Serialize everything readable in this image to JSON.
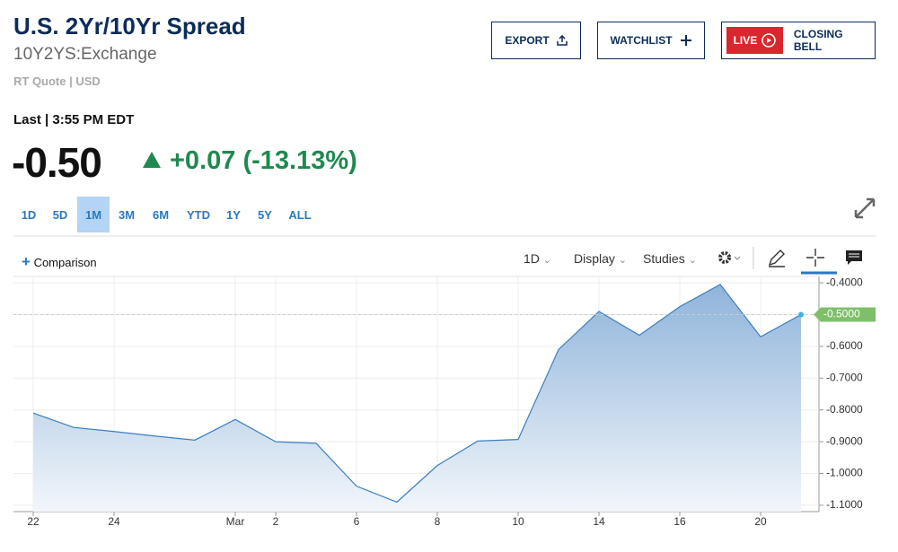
{
  "header": {
    "title": "U.S. 2Yr/10Yr Spread",
    "symbol": "10Y2YS:Exchange",
    "quote_note": "RT Quote | USD"
  },
  "buttons": {
    "export": "EXPORT",
    "watchlist": "WATCHLIST",
    "live": "LIVE",
    "closing_bell": "CLOSING BELL"
  },
  "quote": {
    "last": "Last | 3:55 PM EDT",
    "price": "-0.50",
    "change": "+0.07",
    "change_pct": "(-13.13%)"
  },
  "ranges": [
    "1D",
    "5D",
    "1M",
    "3M",
    "6M",
    "YTD",
    "1Y",
    "5Y",
    "ALL"
  ],
  "selected_range_index": 2,
  "toolbar": {
    "comparison": "Comparison",
    "interval": "1D",
    "display": "Display",
    "studies": "Studies"
  },
  "chart_data": {
    "type": "area",
    "categories": [
      "22",
      null,
      "24",
      null,
      null,
      "Mar",
      "2",
      null,
      "6",
      null,
      "8",
      null,
      "10",
      null,
      "14",
      null,
      "16",
      null,
      "20",
      null
    ],
    "values": [
      -0.81,
      -0.855,
      -0.868,
      -0.882,
      -0.895,
      -0.83,
      -0.9,
      -0.905,
      -1.04,
      -1.09,
      -0.975,
      -0.898,
      -0.893,
      -0.61,
      -0.49,
      -0.565,
      -0.475,
      -0.405,
      -0.57,
      -0.5
    ],
    "color": "#3a7fc1",
    "ylim": [
      -1.12,
      -0.38
    ],
    "yticks": [
      {
        "value": -0.4,
        "label": "-0.4000"
      },
      {
        "value": -0.5,
        "label": "-0.5000"
      },
      {
        "value": -0.6,
        "label": "-0.6000"
      },
      {
        "value": -0.7,
        "label": "-0.7000"
      },
      {
        "value": -0.8,
        "label": "-0.8000"
      },
      {
        "value": -0.9,
        "label": "-0.9000"
      },
      {
        "value": -1.0,
        "label": "-1.0000"
      },
      {
        "value": -1.1,
        "label": "-1.1000"
      }
    ],
    "grid": true,
    "last_label": "-0.5000",
    "last_color": "#7fbf6a"
  }
}
